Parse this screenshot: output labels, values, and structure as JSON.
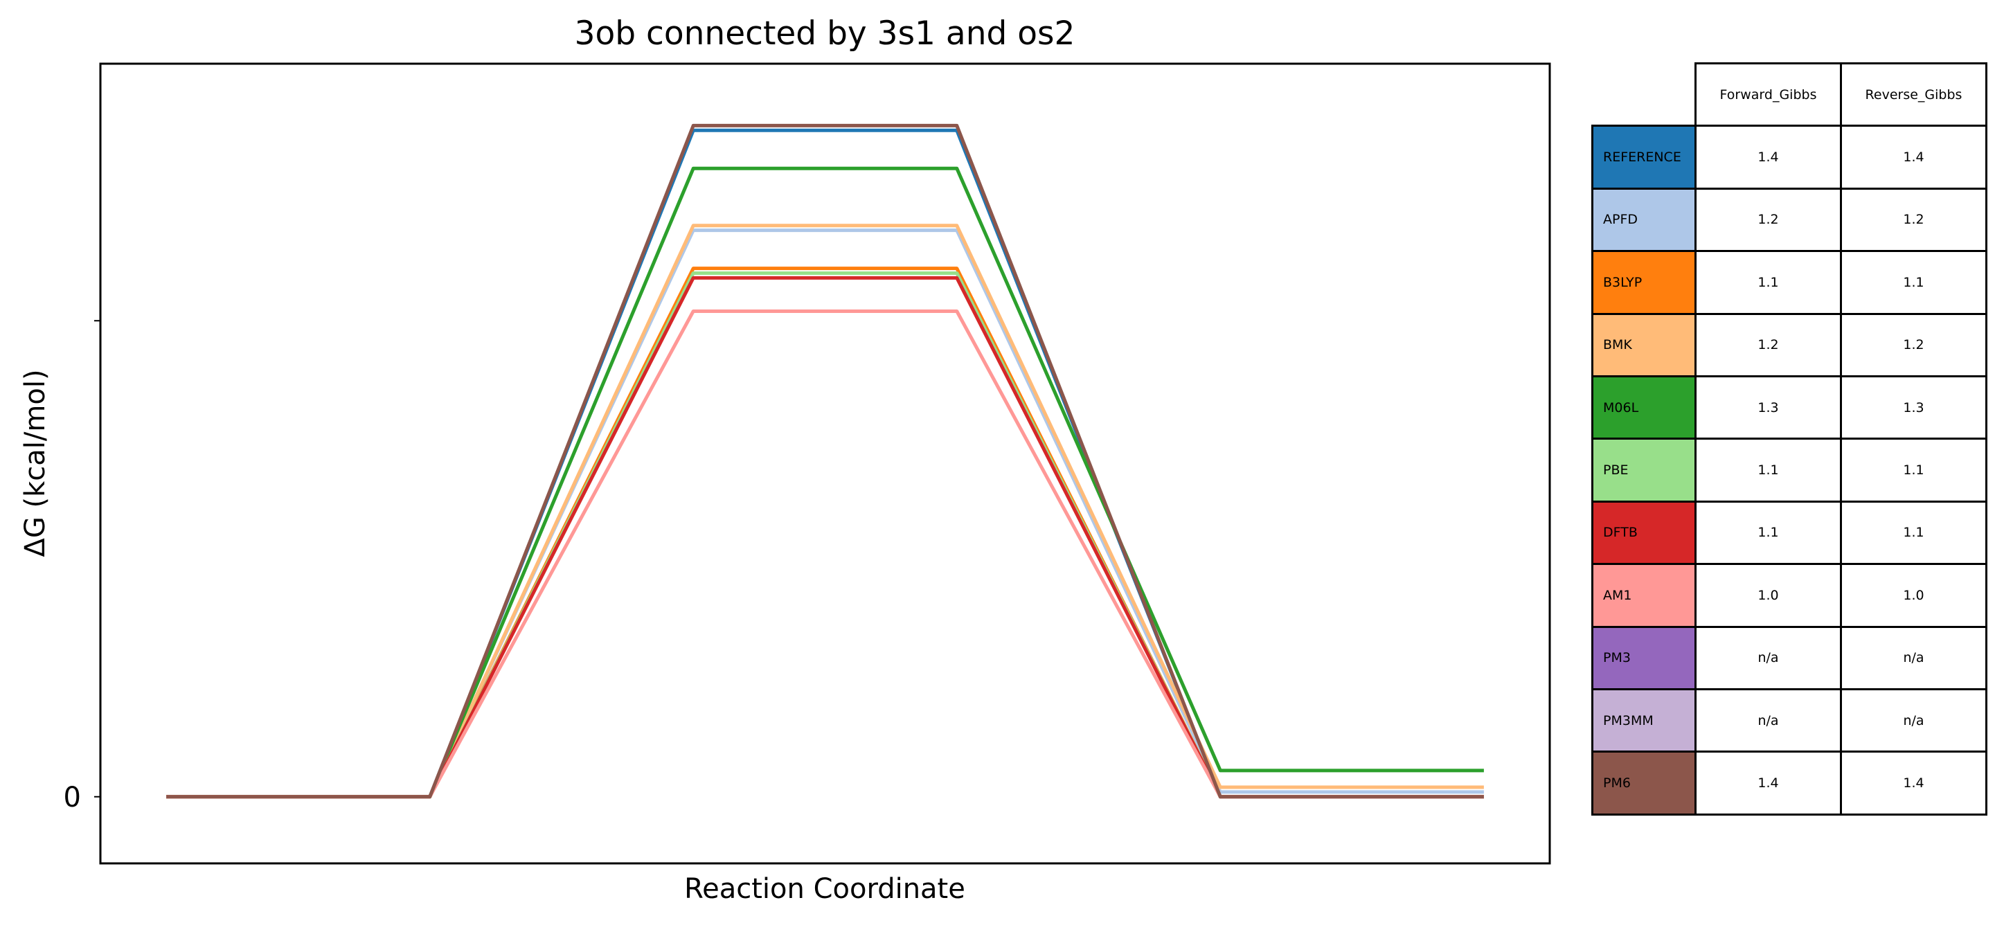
{
  "chart_data": {
    "type": "line",
    "title": "3ob connected by 3s1 and os2",
    "xlabel": "Reaction Coordinate",
    "ylabel": "ΔG (kcal/mol)",
    "y_ticks": [
      {
        "label": "0",
        "value": 0
      },
      {
        "label": "",
        "value": 1.0
      }
    ],
    "ylim": [
      -0.14,
      1.54
    ],
    "x": [
      0,
      1,
      2,
      3,
      4,
      5
    ],
    "xlim": [
      -0.25,
      5.25
    ],
    "grid": false,
    "legend": "table-right",
    "series": [
      {
        "name": "REFERENCE",
        "color": "#1f77b4",
        "values": [
          0,
          0,
          1.4,
          1.4,
          0.0,
          0.0
        ]
      },
      {
        "name": "APFD",
        "color": "#aec7e8",
        "values": [
          0,
          0,
          1.19,
          1.19,
          0.01,
          0.01
        ]
      },
      {
        "name": "B3LYP",
        "color": "#ff7f0e",
        "values": [
          0,
          0,
          1.11,
          1.11,
          0.0,
          0.0
        ]
      },
      {
        "name": "BMK",
        "color": "#ffbb78",
        "values": [
          0,
          0,
          1.2,
          1.2,
          0.02,
          0.02
        ]
      },
      {
        "name": "M06L",
        "color": "#2ca02c",
        "values": [
          0,
          0,
          1.32,
          1.32,
          0.055,
          0.055
        ]
      },
      {
        "name": "PBE",
        "color": "#98df8a",
        "values": [
          0,
          0,
          1.1,
          1.1,
          0.0,
          0.0
        ]
      },
      {
        "name": "DFTB",
        "color": "#d62728",
        "values": [
          0,
          0,
          1.09,
          1.09,
          0.0,
          0.0
        ]
      },
      {
        "name": "AM1",
        "color": "#ff9896",
        "values": [
          0,
          0,
          1.02,
          1.02,
          0.0,
          0.0
        ]
      },
      {
        "name": "PM6",
        "color": "#8c564b",
        "values": [
          0,
          0,
          1.41,
          1.41,
          0.0,
          0.0
        ]
      }
    ],
    "table": {
      "columns": [
        "Forward_Gibbs",
        "Reverse_Gibbs"
      ],
      "rows": [
        {
          "label": "REFERENCE",
          "color": "#1f77b4",
          "forward": "1.4",
          "reverse": "1.4"
        },
        {
          "label": "APFD",
          "color": "#aec7e8",
          "forward": "1.2",
          "reverse": "1.2"
        },
        {
          "label": "B3LYP",
          "color": "#ff7f0e",
          "forward": "1.1",
          "reverse": "1.1"
        },
        {
          "label": "BMK",
          "color": "#ffbb78",
          "forward": "1.2",
          "reverse": "1.2"
        },
        {
          "label": "M06L",
          "color": "#2ca02c",
          "forward": "1.3",
          "reverse": "1.3"
        },
        {
          "label": "PBE",
          "color": "#98df8a",
          "forward": "1.1",
          "reverse": "1.1"
        },
        {
          "label": "DFTB",
          "color": "#d62728",
          "forward": "1.1",
          "reverse": "1.1"
        },
        {
          "label": "AM1",
          "color": "#ff9896",
          "forward": "1.0",
          "reverse": "1.0"
        },
        {
          "label": "PM3",
          "color": "#9467bd",
          "forward": "n/a",
          "reverse": "n/a"
        },
        {
          "label": "PM3MM",
          "color": "#c5b0d5",
          "forward": "n/a",
          "reverse": "n/a"
        },
        {
          "label": "PM6",
          "color": "#8c564b",
          "forward": "1.4",
          "reverse": "1.4"
        }
      ]
    }
  }
}
